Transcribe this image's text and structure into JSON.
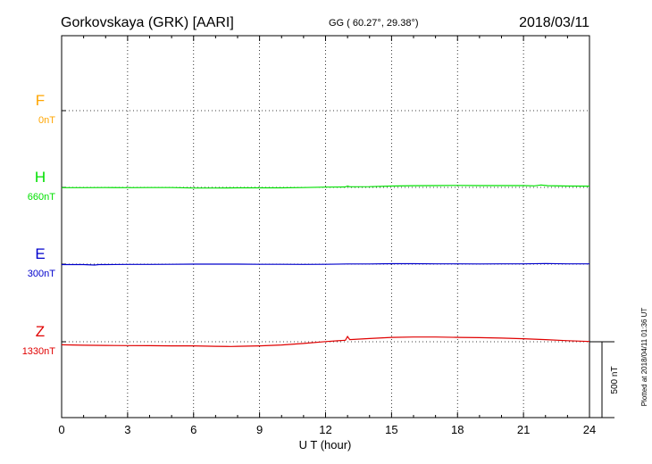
{
  "header": {
    "title": "Gorkovskaya (GRK)  [AARI]",
    "coords": "GG ( 60.27°,  29.38°)",
    "date": "2018/03/11"
  },
  "plotted_note": "Plotted at 2018/04/11 01:36 UT",
  "scale_bar_label": "500 nT",
  "colors": {
    "F": "#ffa500",
    "H": "#00e000",
    "E": "#0000cc",
    "Z": "#e00000",
    "frame": "#000000"
  },
  "chart_data": {
    "type": "line",
    "xlabel": "U T (hour)",
    "xlim": [
      0,
      24
    ],
    "xticks": [
      "0",
      "3",
      "6",
      "9",
      "12",
      "15",
      "18",
      "21",
      "24"
    ],
    "ylabel": "",
    "grid": true,
    "scale_nT": 500,
    "series": [
      {
        "name": "F",
        "label": "F",
        "baseline": "0nT",
        "has_data": false,
        "x": [],
        "values": []
      },
      {
        "name": "H",
        "label": "H",
        "baseline": "660nT",
        "has_data": true,
        "x": [
          0,
          1,
          2,
          3,
          4,
          5,
          6,
          7,
          8,
          9,
          10,
          11,
          12,
          12.9,
          13,
          13.1,
          14,
          15,
          16,
          17,
          18,
          19,
          20,
          21,
          21.5,
          21.8,
          22.1,
          23,
          24
        ],
        "values": [
          -2,
          -2,
          -1,
          -2,
          -1,
          -1,
          -4,
          -4,
          -3,
          -3,
          -3,
          -1,
          2,
          3,
          9,
          4,
          5,
          9,
          11,
          12,
          13,
          12,
          12,
          12,
          10,
          16,
          11,
          9,
          8
        ]
      },
      {
        "name": "E",
        "label": "E",
        "baseline": "300nT",
        "has_data": true,
        "x": [
          0,
          1,
          1.5,
          1.7,
          2,
          3,
          4,
          5,
          6,
          7,
          8,
          9,
          10,
          11,
          12,
          13,
          14,
          15,
          16,
          17,
          18,
          19,
          20,
          21,
          22,
          23,
          24
        ],
        "values": [
          -3,
          -3,
          -6,
          -3,
          -3,
          -2,
          -2,
          -1,
          0,
          0,
          0,
          -1,
          -1,
          -2,
          -1,
          1,
          1,
          3,
          3,
          2,
          2,
          1,
          2,
          2,
          4,
          2,
          2
        ]
      },
      {
        "name": "Z",
        "label": "Z",
        "baseline": "1330nT",
        "has_data": true,
        "x": [
          0,
          1,
          2,
          3,
          4,
          5,
          6,
          7,
          7.7,
          8,
          9,
          10,
          11,
          12,
          12.9,
          13,
          13.1,
          14,
          15,
          16,
          17,
          18,
          19,
          20,
          21,
          22,
          23,
          24
        ],
        "values": [
          -20,
          -23,
          -24,
          -25,
          -26,
          -27,
          -27,
          -30,
          -31,
          -30,
          -27,
          -21,
          -11,
          1,
          10,
          35,
          14,
          21,
          29,
          31,
          31,
          29,
          27,
          24,
          20,
          14,
          7,
          2
        ]
      }
    ]
  }
}
